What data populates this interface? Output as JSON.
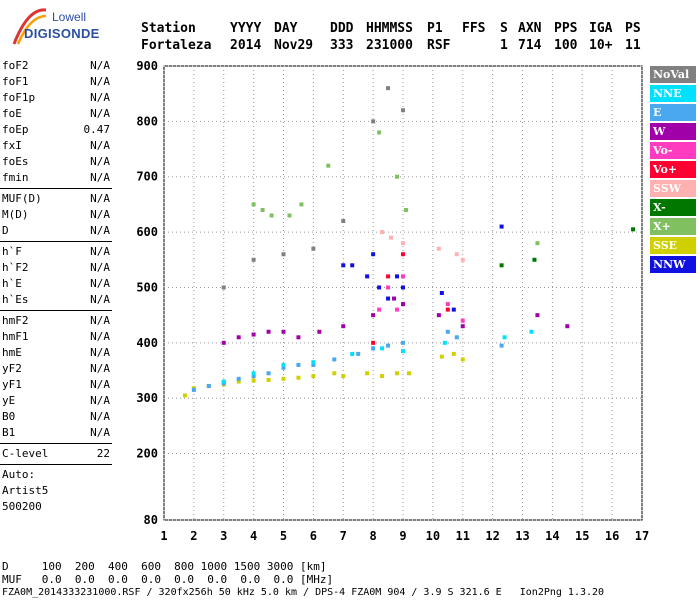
{
  "brand": {
    "line1": "Lowell",
    "line2": "DIGISONDE"
  },
  "header": {
    "labels": [
      "Station",
      "YYYY",
      "DAY",
      "DDD",
      "HHMMSS",
      "P1",
      "FFS",
      "S",
      "AXN",
      "PPS",
      "IGA",
      "PS"
    ],
    "values": [
      "Fortaleza",
      "2014",
      "Nov29",
      "333",
      "231000",
      "RSF",
      "",
      "1",
      "714",
      "100",
      "10+",
      "11"
    ]
  },
  "params_a": [
    {
      "name": "foF2",
      "value": "N/A"
    },
    {
      "name": "foF1",
      "value": "N/A"
    },
    {
      "name": "foF1p",
      "value": "N/A"
    },
    {
      "name": "foE",
      "value": "N/A"
    },
    {
      "name": "foEp",
      "value": "0.47"
    },
    {
      "name": "fxI",
      "value": "N/A"
    },
    {
      "name": "foEs",
      "value": "N/A"
    },
    {
      "name": "fmin",
      "value": "N/A"
    }
  ],
  "params_b": [
    {
      "name": "MUF(D)",
      "value": "N/A"
    },
    {
      "name": "M(D)",
      "value": "N/A"
    },
    {
      "name": "D",
      "value": "N/A"
    }
  ],
  "params_c": [
    {
      "name": "h`F",
      "value": "N/A"
    },
    {
      "name": "h`F2",
      "value": "N/A"
    },
    {
      "name": "h`E",
      "value": "N/A"
    },
    {
      "name": "h`Es",
      "value": "N/A"
    }
  ],
  "params_d": [
    {
      "name": "hmF2",
      "value": "N/A"
    },
    {
      "name": "hmF1",
      "value": "N/A"
    },
    {
      "name": "hmE",
      "value": "N/A"
    },
    {
      "name": "yF2",
      "value": "N/A"
    },
    {
      "name": "yF1",
      "value": "N/A"
    },
    {
      "name": "yE",
      "value": "N/A"
    },
    {
      "name": "B0",
      "value": "N/A"
    },
    {
      "name": "B1",
      "value": "N/A"
    }
  ],
  "c_level": {
    "name": "C-level",
    "value": "22"
  },
  "auto_info": [
    "Auto:",
    "Artist5",
    "500200"
  ],
  "footer": {
    "d_line": "D     100  200  400  600  800 1000 1500 3000 [km]",
    "muf_line": "MUF   0.0  0.0  0.0  0.0  0.0  0.0  0.0  0.0 [MHz]",
    "file_line": "FZA0M_2014333231000.RSF / 320fx256h 50 kHz 5.0 km / DPS-4 FZA0M 904 / 3.9 S 321.6 E   Ion2Png 1.3.20"
  },
  "legend": [
    {
      "label": "NoVal",
      "color": "#808080"
    },
    {
      "label": "NNE",
      "color": "#00e0ff"
    },
    {
      "label": "E",
      "color": "#4aa8f0"
    },
    {
      "label": "W",
      "color": "#a000a8"
    },
    {
      "label": "Vo-",
      "color": "#ff3cc0"
    },
    {
      "label": "Vo+",
      "color": "#ff0030"
    },
    {
      "label": "SSW",
      "color": "#ffb0b0"
    },
    {
      "label": "X-",
      "color": "#007800"
    },
    {
      "label": "X+",
      "color": "#80c060"
    },
    {
      "label": "SSE",
      "color": "#d0d000"
    },
    {
      "label": "NNW",
      "color": "#1010e0"
    }
  ],
  "chart_data": {
    "type": "scatter",
    "xlabel": "",
    "ylabel": "",
    "xlim": [
      1,
      17
    ],
    "ylim": [
      80,
      900
    ],
    "xticks": [
      1,
      2,
      3,
      4,
      5,
      6,
      7,
      8,
      9,
      10,
      11,
      12,
      13,
      14,
      15,
      16,
      17
    ],
    "yticks": [
      80,
      200,
      300,
      400,
      500,
      600,
      700,
      800,
      900
    ],
    "grid": "dotted",
    "series": [
      {
        "name": "SSE",
        "points": [
          [
            1.7,
            305
          ],
          [
            2.0,
            318
          ],
          [
            2.5,
            322
          ],
          [
            3.0,
            325
          ],
          [
            3.5,
            330
          ],
          [
            4.0,
            332
          ],
          [
            4.5,
            333
          ],
          [
            5.0,
            335
          ],
          [
            5.5,
            337
          ],
          [
            6.0,
            340
          ],
          [
            6.7,
            345
          ],
          [
            7.0,
            340
          ],
          [
            7.8,
            345
          ],
          [
            8.3,
            340
          ],
          [
            8.8,
            345
          ],
          [
            9.2,
            345
          ],
          [
            10.3,
            375
          ],
          [
            10.7,
            380
          ],
          [
            11.0,
            370
          ]
        ]
      },
      {
        "name": "E",
        "points": [
          [
            2.0,
            315
          ],
          [
            2.5,
            322
          ],
          [
            3.0,
            327
          ],
          [
            3.5,
            335
          ],
          [
            4.0,
            340
          ],
          [
            4.5,
            345
          ],
          [
            5.0,
            355
          ],
          [
            5.5,
            360
          ],
          [
            6.0,
            360
          ],
          [
            6.7,
            370
          ],
          [
            7.5,
            380
          ],
          [
            8.0,
            390
          ],
          [
            8.5,
            395
          ],
          [
            9.0,
            400
          ],
          [
            10.5,
            420
          ],
          [
            10.8,
            410
          ],
          [
            12.3,
            395
          ]
        ]
      },
      {
        "name": "NNE",
        "points": [
          [
            3.0,
            330
          ],
          [
            4.0,
            345
          ],
          [
            5.0,
            360
          ],
          [
            6.0,
            365
          ],
          [
            7.3,
            380
          ],
          [
            8.3,
            390
          ],
          [
            9.0,
            385
          ],
          [
            10.4,
            400
          ],
          [
            12.4,
            410
          ],
          [
            13.3,
            420
          ]
        ]
      },
      {
        "name": "W",
        "points": [
          [
            3.0,
            400
          ],
          [
            3.5,
            410
          ],
          [
            4.0,
            415
          ],
          [
            4.5,
            420
          ],
          [
            5.0,
            420
          ],
          [
            5.5,
            410
          ],
          [
            6.2,
            420
          ],
          [
            7.0,
            430
          ],
          [
            8.0,
            450
          ],
          [
            8.7,
            480
          ],
          [
            9.0,
            470
          ],
          [
            10.2,
            450
          ],
          [
            11.0,
            430
          ],
          [
            13.5,
            450
          ],
          [
            14.5,
            430
          ]
        ]
      },
      {
        "name": "NNW",
        "points": [
          [
            7.0,
            540
          ],
          [
            7.3,
            540
          ],
          [
            7.8,
            520
          ],
          [
            8.0,
            560
          ],
          [
            8.2,
            500
          ],
          [
            8.5,
            480
          ],
          [
            8.8,
            520
          ],
          [
            9.0,
            500
          ],
          [
            10.3,
            490
          ],
          [
            10.7,
            460
          ],
          [
            12.3,
            610
          ]
        ]
      },
      {
        "name": "Vo-",
        "points": [
          [
            8.2,
            460
          ],
          [
            8.5,
            500
          ],
          [
            8.8,
            460
          ],
          [
            9.0,
            520
          ],
          [
            10.5,
            470
          ],
          [
            11.0,
            440
          ]
        ]
      },
      {
        "name": "Vo+",
        "points": [
          [
            8.0,
            400
          ],
          [
            8.5,
            520
          ],
          [
            9.0,
            560
          ],
          [
            10.5,
            460
          ]
        ]
      },
      {
        "name": "SSW",
        "points": [
          [
            8.3,
            600
          ],
          [
            8.6,
            590
          ],
          [
            9.0,
            580
          ],
          [
            10.2,
            570
          ],
          [
            10.8,
            560
          ],
          [
            11.0,
            550
          ]
        ]
      },
      {
        "name": "X-",
        "points": [
          [
            12.3,
            540
          ],
          [
            13.4,
            550
          ],
          [
            16.7,
            605
          ]
        ]
      },
      {
        "name": "X+",
        "points": [
          [
            4.0,
            650
          ],
          [
            4.3,
            640
          ],
          [
            4.6,
            630
          ],
          [
            5.2,
            630
          ],
          [
            5.6,
            650
          ],
          [
            6.5,
            720
          ],
          [
            8.2,
            780
          ],
          [
            8.8,
            700
          ],
          [
            9.1,
            640
          ],
          [
            13.5,
            580
          ]
        ]
      },
      {
        "name": "NoVal",
        "points": [
          [
            3.0,
            500
          ],
          [
            4.0,
            550
          ],
          [
            5.0,
            560
          ],
          [
            6.0,
            570
          ],
          [
            7.0,
            620
          ],
          [
            8.0,
            800
          ],
          [
            8.5,
            860
          ],
          [
            9.0,
            820
          ]
        ]
      }
    ]
  }
}
